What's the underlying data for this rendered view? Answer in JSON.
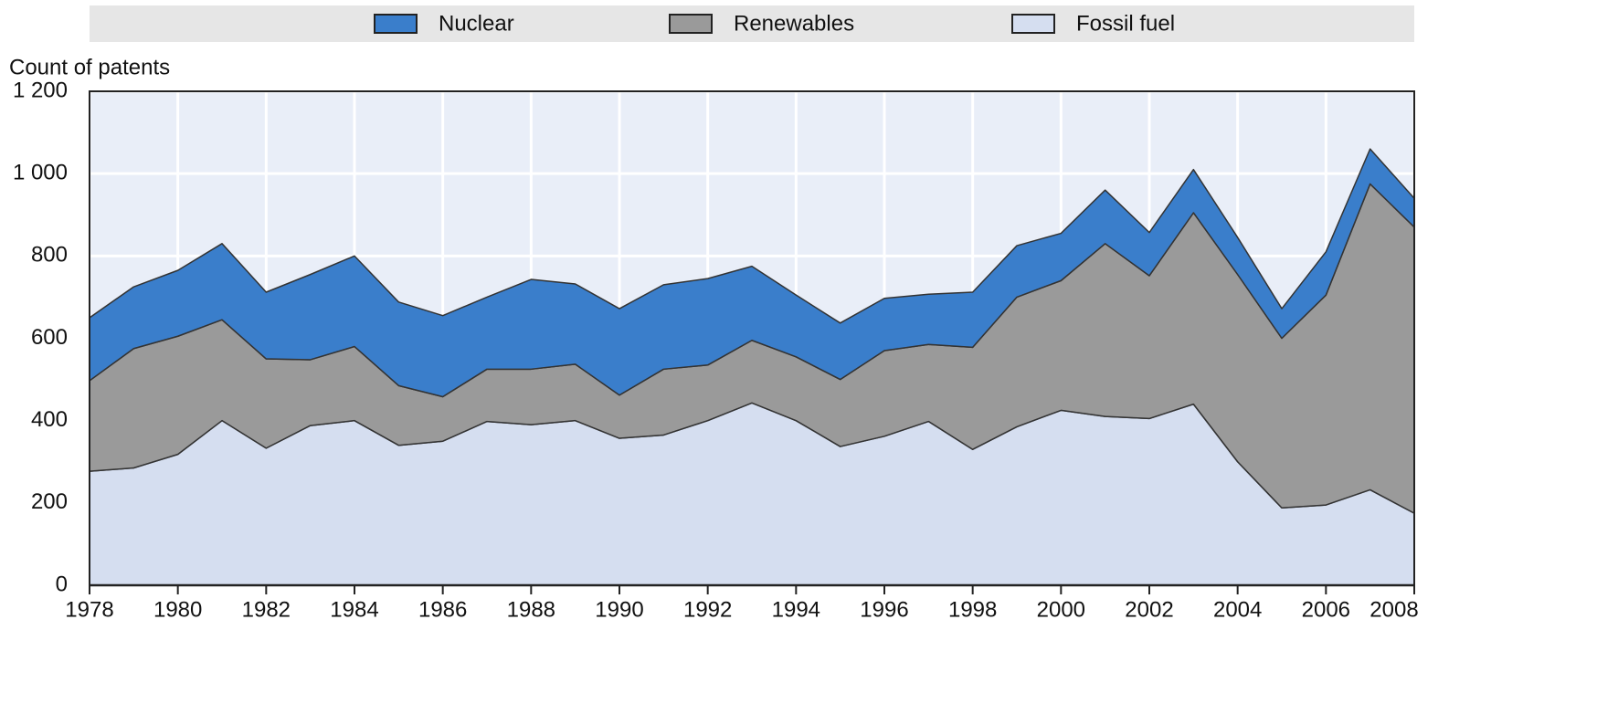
{
  "chart_data": {
    "type": "stacked_area",
    "y_label": "Count of patents",
    "x": [
      1978,
      1979,
      1980,
      1981,
      1982,
      1983,
      1984,
      1985,
      1986,
      1987,
      1988,
      1989,
      1990,
      1991,
      1992,
      1993,
      1994,
      1995,
      1996,
      1997,
      1998,
      1999,
      2000,
      2001,
      2002,
      2003,
      2004,
      2005,
      2006,
      2007,
      2008
    ],
    "series": [
      {
        "name": "Nuclear",
        "color": "#3a7ecb",
        "values": [
          153,
          150,
          160,
          185,
          162,
          207,
          220,
          203,
          197,
          175,
          218,
          195,
          210,
          205,
          210,
          180,
          150,
          137,
          127,
          122,
          134,
          125,
          115,
          130,
          105,
          105,
          90,
          72,
          105,
          85,
          70
        ]
      },
      {
        "name": "Renewables",
        "color": "#9a9a9a",
        "values": [
          220,
          290,
          287,
          245,
          217,
          160,
          180,
          145,
          108,
          127,
          135,
          137,
          105,
          160,
          135,
          152,
          155,
          163,
          208,
          187,
          248,
          315,
          315,
          420,
          347,
          465,
          455,
          412,
          510,
          743,
          695
        ]
      },
      {
        "name": "Fossil fuel",
        "color": "#d5def0",
        "values": [
          277,
          285,
          318,
          400,
          333,
          388,
          400,
          340,
          350,
          398,
          390,
          400,
          357,
          365,
          400,
          443,
          400,
          337,
          362,
          398,
          330,
          385,
          425,
          410,
          405,
          440,
          300,
          188,
          195,
          232,
          175
        ]
      }
    ],
    "xlim": [
      1978,
      2008
    ],
    "xticks": [
      1978,
      1980,
      1982,
      1984,
      1986,
      1988,
      1990,
      1992,
      1994,
      1996,
      1998,
      2000,
      2002,
      2004,
      2006,
      2008
    ],
    "ylim": [
      0,
      1200
    ],
    "yticks": [
      0,
      200,
      400,
      600,
      800,
      {
        "value": 1000,
        "label": "1 000"
      },
      {
        "value": 1200,
        "label": "1 200"
      }
    ],
    "grid": true,
    "legend": "top"
  }
}
